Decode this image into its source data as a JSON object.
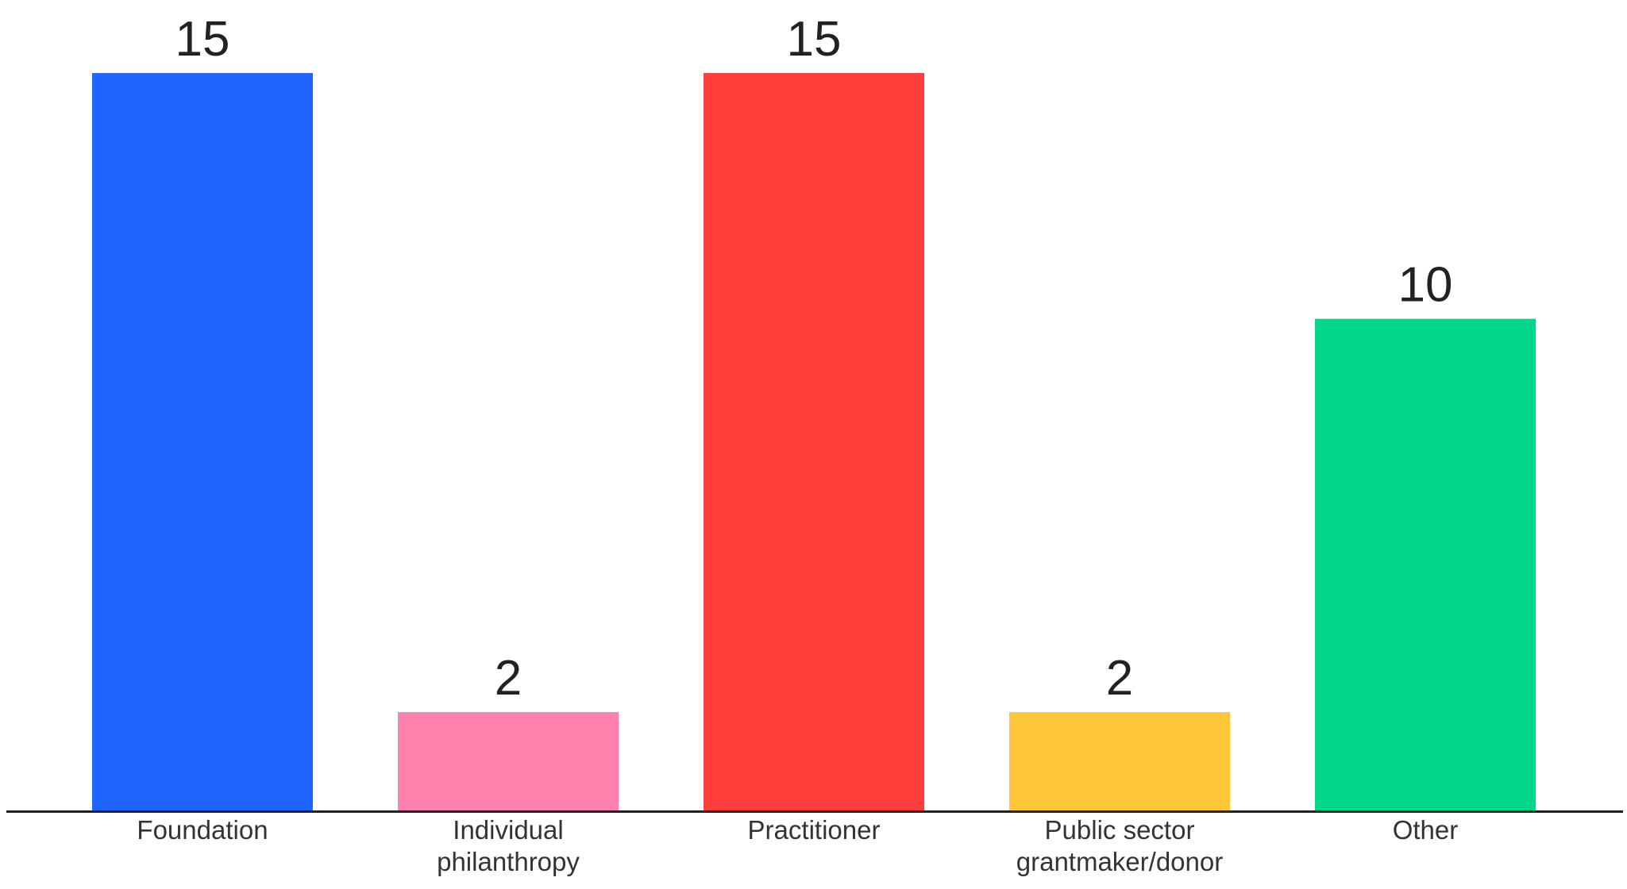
{
  "chart_data": {
    "type": "bar",
    "title": "",
    "xlabel": "",
    "ylabel": "",
    "ylim": [
      0,
      15
    ],
    "grid": false,
    "legend": "none",
    "categories": [
      {
        "label_lines": [
          "Foundation"
        ],
        "value": 15,
        "value_label": "15",
        "color": "#1E66FF"
      },
      {
        "label_lines": [
          "Individual",
          "philanthropy"
        ],
        "value": 2,
        "value_label": "2",
        "color": "#FF82AE"
      },
      {
        "label_lines": [
          "Practitioner"
        ],
        "value": 15,
        "value_label": "15",
        "color": "#FF3E3C"
      },
      {
        "label_lines": [
          "Public sector",
          "grantmaker/donor"
        ],
        "value": 2,
        "value_label": "2",
        "color": "#FFC639"
      },
      {
        "label_lines": [
          "Other"
        ],
        "value": 10,
        "value_label": "10",
        "color": "#04D78C"
      }
    ],
    "axis_color": "#222222"
  }
}
